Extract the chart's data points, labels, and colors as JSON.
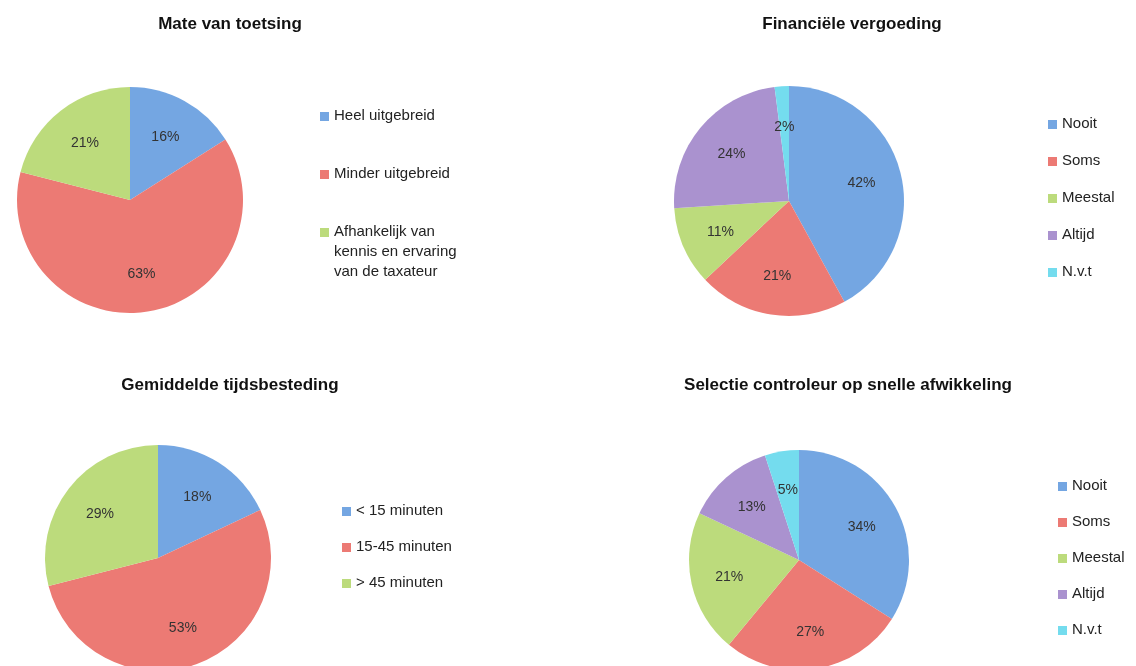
{
  "chart_data": [
    {
      "type": "pie",
      "title": "Mate van toetsing",
      "categories": [
        "Heel uitgebreid",
        "Minder uitgebreid",
        "Afhankelijk van kennis en ervaring van de taxateur"
      ],
      "values": [
        16,
        63,
        21
      ],
      "value_labels": [
        "16%",
        "63%",
        "21%"
      ],
      "colors": [
        "#74a6e2",
        "#ec7a74",
        "#bcdb7c"
      ],
      "legend": "right"
    },
    {
      "type": "pie",
      "title": "Financiële vergoeding",
      "categories": [
        "Nooit",
        "Soms",
        "Meestal",
        "Altijd",
        "N.v.t"
      ],
      "values": [
        42,
        21,
        11,
        24,
        2
      ],
      "value_labels": [
        "42%",
        "21%",
        "11%",
        "24%",
        "2%"
      ],
      "colors": [
        "#74a6e2",
        "#ec7a74",
        "#bcdb7c",
        "#aa92cf",
        "#74dcee"
      ],
      "legend": "right"
    },
    {
      "type": "pie",
      "title": "Gemiddelde tijdsbesteding",
      "categories": [
        "< 15 minuten",
        "15-45 minuten",
        "> 45 minuten"
      ],
      "values": [
        18,
        53,
        29
      ],
      "value_labels": [
        "18%",
        "53%",
        "29%"
      ],
      "colors": [
        "#74a6e2",
        "#ec7a74",
        "#bcdb7c"
      ],
      "legend": "right"
    },
    {
      "type": "pie",
      "title": "Selectie controleur op snelle afwikkeling",
      "categories": [
        "Nooit",
        "Soms",
        "Meestal",
        "Altijd",
        "N.v.t"
      ],
      "values": [
        34,
        27,
        21,
        13,
        5
      ],
      "value_labels": [
        "34%",
        "27%",
        "21%",
        "13%",
        "5%"
      ],
      "colors": [
        "#74a6e2",
        "#ec7a74",
        "#bcdb7c",
        "#aa92cf",
        "#74dcee"
      ],
      "legend": "right"
    }
  ]
}
